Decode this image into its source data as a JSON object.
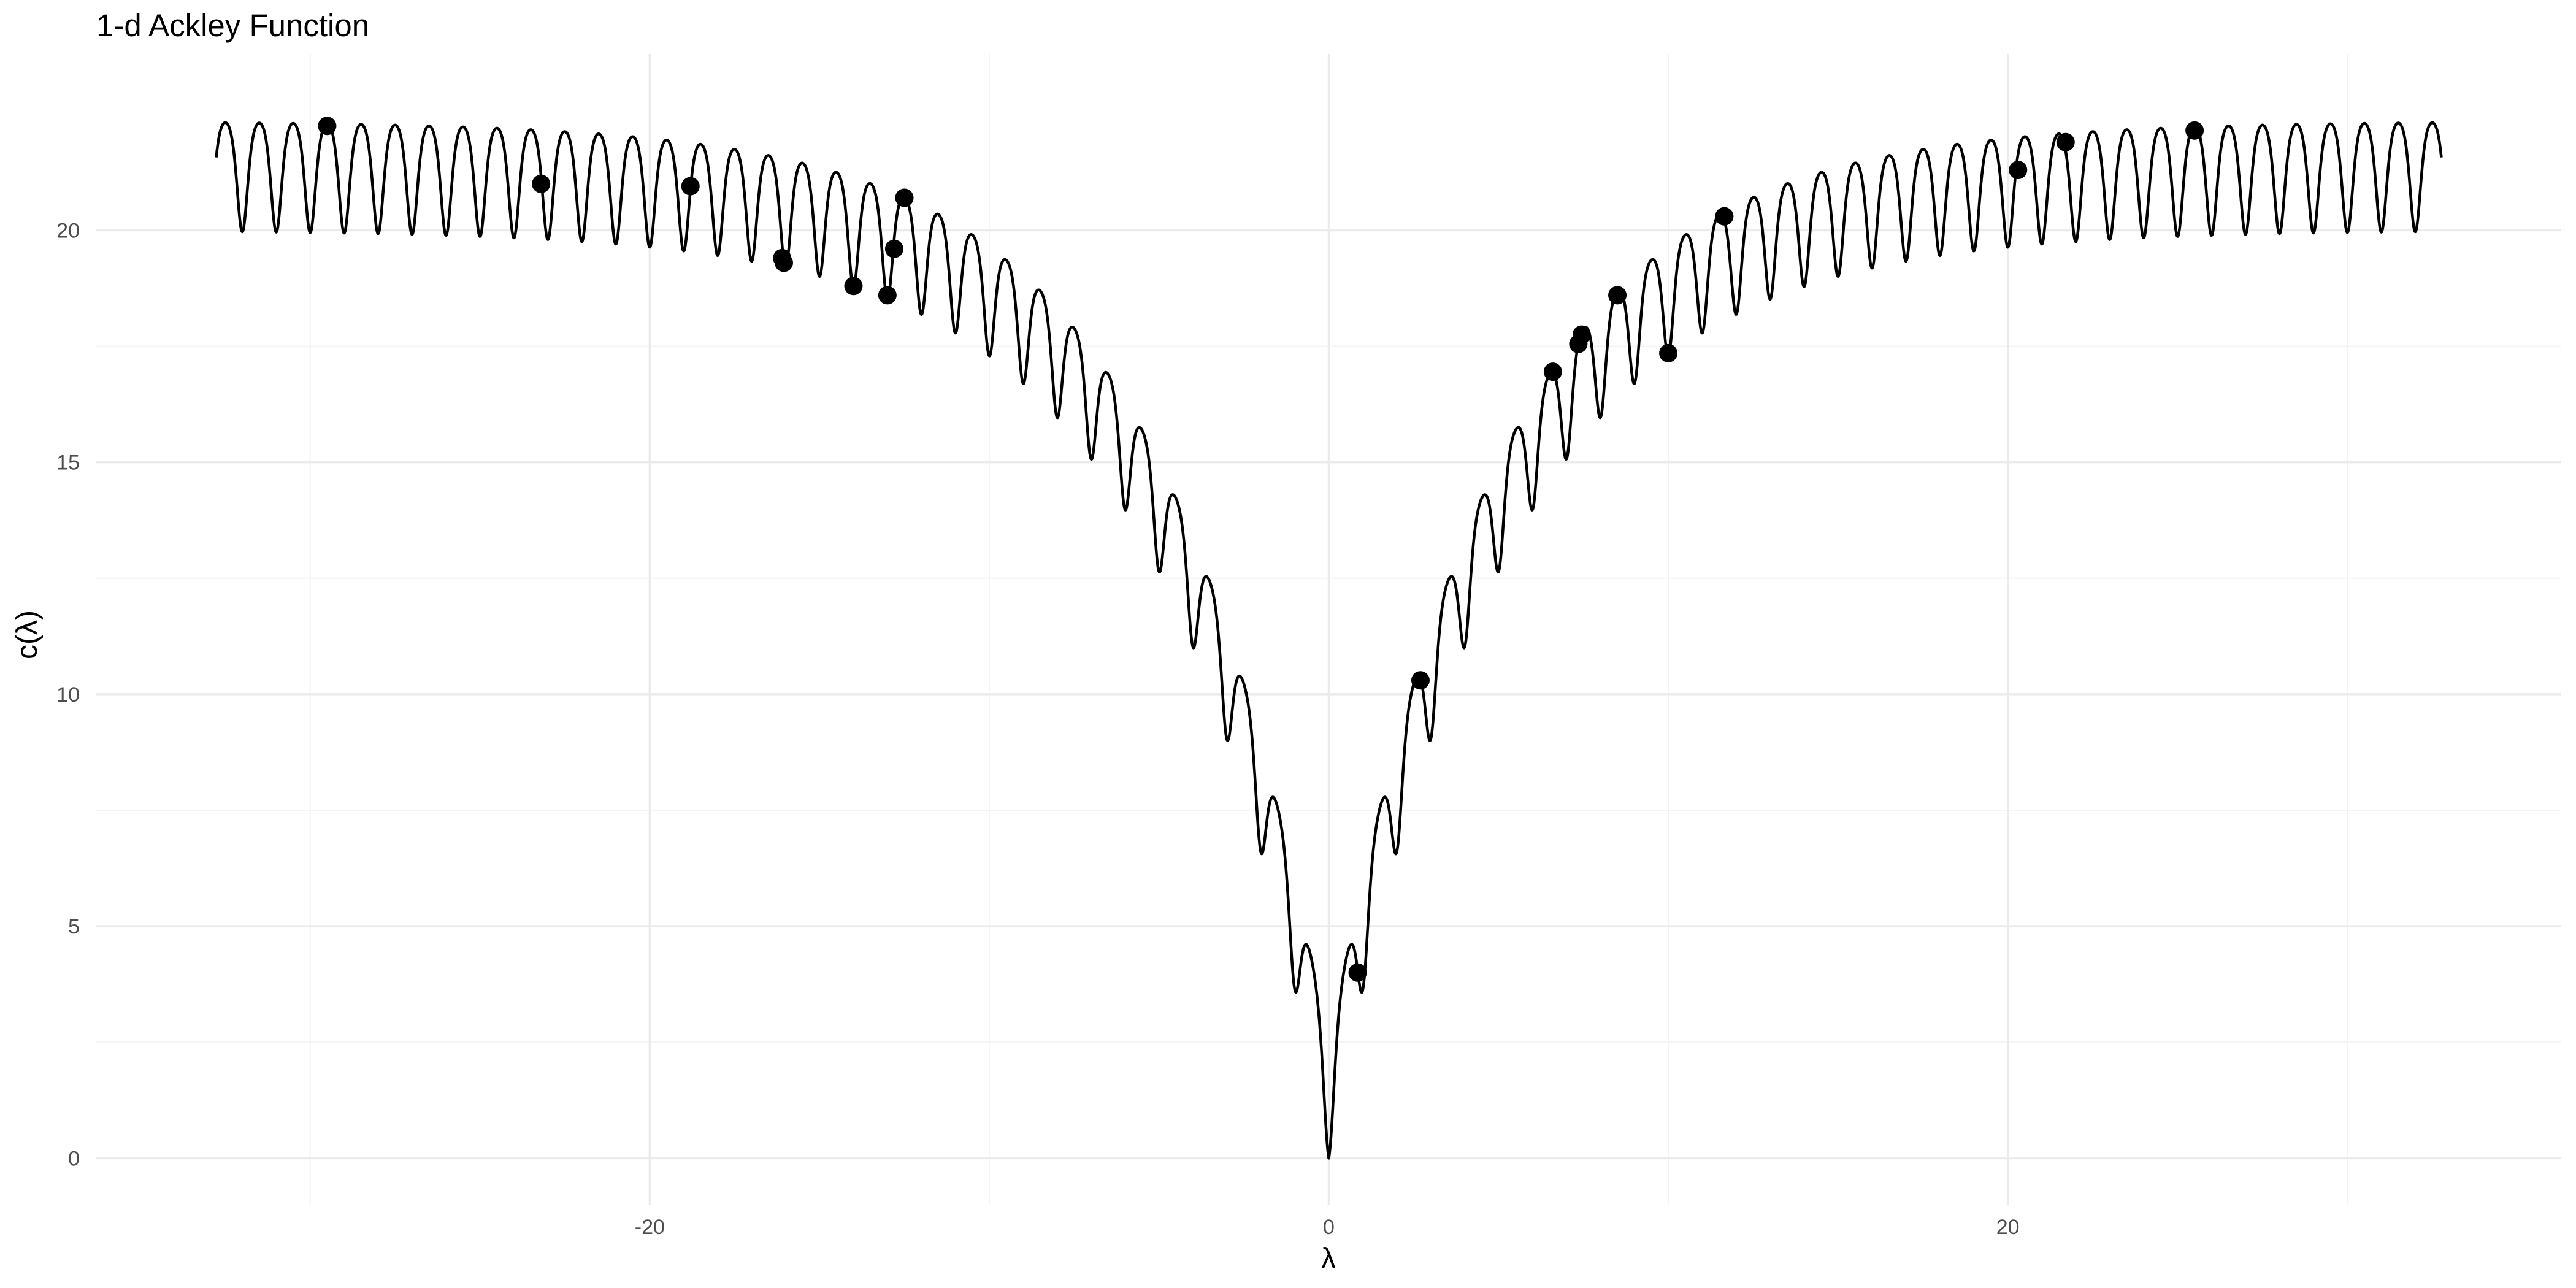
{
  "chart_data": {
    "type": "line",
    "title": "1-d Ackley Function",
    "xlabel": "λ",
    "ylabel": "c(λ)",
    "xlim": [
      -36.3,
      36.3
    ],
    "ylim": [
      -1.0,
      23.8
    ],
    "x_ticks": [
      -20,
      0,
      20
    ],
    "x_minor_ticks": [
      -30,
      -10,
      10,
      30
    ],
    "y_ticks": [
      0,
      5,
      10,
      15,
      20
    ],
    "y_minor_ticks": [
      2.5,
      7.5,
      12.5,
      17.5
    ],
    "grid": true,
    "legend": "none",
    "series": [
      {
        "type": "line",
        "function": "ackley_1d",
        "x_range": [
          -32.768,
          32.768
        ],
        "color": "#000000"
      },
      {
        "type": "scatter",
        "color": "#000000",
        "points": [
          {
            "x": -29.5,
            "y": 22.25
          },
          {
            "x": -23.2,
            "y": 21.0
          },
          {
            "x": -18.8,
            "y": 20.95
          },
          {
            "x": -16.1,
            "y": 19.4
          },
          {
            "x": -16.05,
            "y": 19.3
          },
          {
            "x": -14.0,
            "y": 18.8
          },
          {
            "x": -13.0,
            "y": 18.6
          },
          {
            "x": -12.8,
            "y": 19.6
          },
          {
            "x": -12.5,
            "y": 20.7
          },
          {
            "x": 0.85,
            "y": 4.0
          },
          {
            "x": 2.7,
            "y": 10.3
          },
          {
            "x": 6.6,
            "y": 16.95
          },
          {
            "x": 7.35,
            "y": 17.55
          },
          {
            "x": 7.45,
            "y": 17.75
          },
          {
            "x": 8.5,
            "y": 18.6
          },
          {
            "x": 10.0,
            "y": 17.35
          },
          {
            "x": 11.65,
            "y": 20.3
          },
          {
            "x": 20.3,
            "y": 21.3
          },
          {
            "x": 21.7,
            "y": 21.9
          },
          {
            "x": 25.5,
            "y": 22.15
          }
        ]
      }
    ]
  }
}
